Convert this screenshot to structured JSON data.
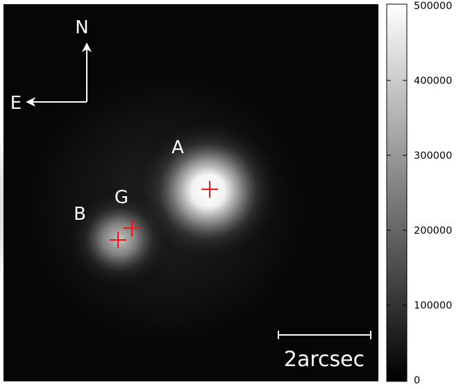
{
  "image": {
    "compass": {
      "north": "N",
      "east": "E"
    },
    "labels": {
      "a": "A",
      "b": "B",
      "g": "G"
    },
    "scale_bar": {
      "text": "2arcsec"
    },
    "marker_color": "#ff1010"
  },
  "colorbar": {
    "ticks": [
      "500000",
      "400000",
      "300000",
      "200000",
      "100000",
      "0"
    ],
    "min": 0,
    "max": 500000
  }
}
